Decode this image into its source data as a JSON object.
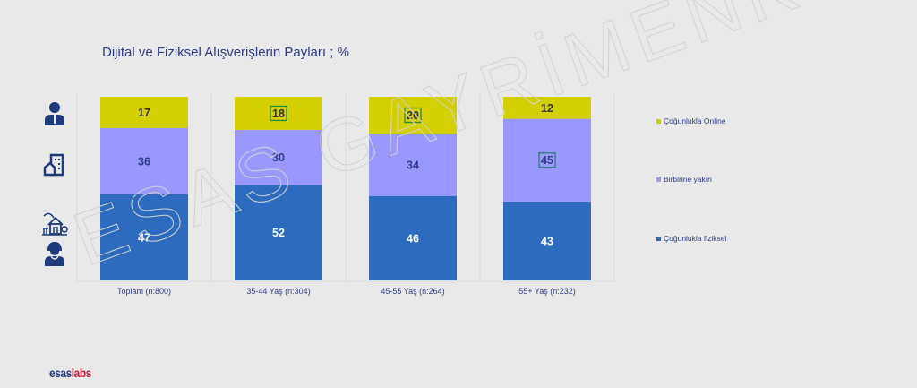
{
  "chart_data": {
    "type": "bar",
    "stacked": true,
    "normalized_100": true,
    "title": "Dijital ve Fiziksel Alışverişlerin Payları ; %",
    "categories": [
      "Toplam (n:800)",
      "35-44 Yaş (n:304)",
      "45-55 Yaş (n:264)",
      "55+  Yaş (n:232)"
    ],
    "series": [
      {
        "name": "Çoğunlukla fiziksel",
        "color": "#2c6bbd",
        "label_color": "#ffffff",
        "values": [
          47,
          52,
          46,
          43
        ]
      },
      {
        "name": "Birbirine yakın",
        "color": "#9b98fd",
        "label_color": "#2e3c8a",
        "values": [
          36,
          30,
          34,
          45
        ]
      },
      {
        "name": "Çoğunlukla Online",
        "color": "#d4cf00",
        "label_color": "#333333",
        "values": [
          17,
          18,
          20,
          12
        ]
      }
    ],
    "highlighted_labels": [
      {
        "series": "Çoğunlukla Online",
        "category": "35-44 Yaş (n:304)",
        "box_color": "#2e8b2e"
      },
      {
        "series": "Çoğunlukla Online",
        "category": "45-55 Yaş (n:264)",
        "box_color": "#2e8b2e"
      },
      {
        "series": "Birbirine yakın",
        "category": "55+  Yaş (n:232)",
        "box_color": "#2e7d6e"
      }
    ],
    "xlabel": "",
    "ylabel": "",
    "ylim": [
      0,
      100
    ],
    "grid": false,
    "legend_position": "right",
    "legend_order": [
      "Çoğunlukla Online",
      "Birbirine yakın",
      "Çoğunlukla fiziksel"
    ]
  },
  "watermark": "ESAS GAYRİMENKUL",
  "icons": [
    "businessman-icon",
    "apartment-building-icon",
    "house-with-tree-icon",
    "woman-user-icon"
  ],
  "logo": {
    "part1": "esas",
    "part2": "labs"
  }
}
